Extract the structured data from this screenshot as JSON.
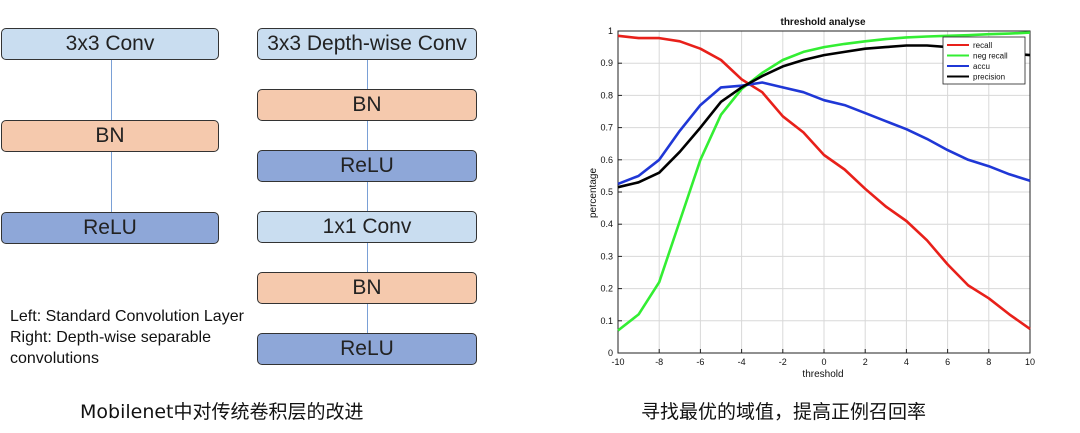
{
  "left_diagram": {
    "standard": {
      "blocks": [
        {
          "label": "3x3 Conv",
          "kind": "conv"
        },
        {
          "label": "BN",
          "kind": "bn"
        },
        {
          "label": "ReLU",
          "kind": "relu"
        }
      ]
    },
    "depthwise": {
      "blocks": [
        {
          "label": "3x3 Depth-wise Conv",
          "kind": "conv"
        },
        {
          "label": "BN",
          "kind": "bn"
        },
        {
          "label": "ReLU",
          "kind": "relu"
        },
        {
          "label": "1x1 Conv",
          "kind": "conv"
        },
        {
          "label": "BN",
          "kind": "bn"
        },
        {
          "label": "ReLU",
          "kind": "relu"
        }
      ]
    },
    "note_lines": [
      "Left: Standard Convolution Layer",
      "Right: Depth-wise separable",
      "convolutions"
    ],
    "caption": "Mobilenet中对传统卷积层的改进"
  },
  "right_caption": "寻找最优的域值，提高正例召回率",
  "colors": {
    "conv": "#c9ddf0",
    "bn": "#f5c9ad",
    "relu": "#8ea7d8",
    "recall": "#e8201a",
    "neg_recall": "#33ee33",
    "accu": "#1f37d6",
    "precision": "#000000"
  },
  "chart_data": {
    "type": "line",
    "title": "threshold analyse",
    "xlabel": "threshold",
    "ylabel": "percentage",
    "xlim": [
      -10,
      10
    ],
    "ylim": [
      0,
      1
    ],
    "xticks": [
      "-10",
      "-8",
      "-6",
      "-4",
      "-2",
      "0",
      "2",
      "4",
      "6",
      "8",
      "10"
    ],
    "yticks": [
      "0",
      "0.1",
      "0.2",
      "0.3",
      "0.4",
      "0.5",
      "0.6",
      "0.7",
      "0.8",
      "0.9",
      "1"
    ],
    "grid": true,
    "legend_position": "top-right",
    "x": [
      -10,
      -9,
      -8,
      -7,
      -6,
      -5,
      -4,
      -3,
      -2,
      -1,
      0,
      1,
      2,
      3,
      4,
      5,
      6,
      7,
      8,
      9,
      10
    ],
    "series": [
      {
        "name": "recall",
        "color": "#e8201a",
        "values": [
          0.985,
          0.978,
          0.978,
          0.968,
          0.945,
          0.91,
          0.85,
          0.81,
          0.735,
          0.685,
          0.615,
          0.57,
          0.51,
          0.455,
          0.41,
          0.35,
          0.275,
          0.21,
          0.17,
          0.12,
          0.075
        ]
      },
      {
        "name": "neg recall",
        "color": "#33ee33",
        "values": [
          0.07,
          0.12,
          0.22,
          0.41,
          0.6,
          0.74,
          0.82,
          0.87,
          0.91,
          0.935,
          0.95,
          0.96,
          0.968,
          0.975,
          0.98,
          0.983,
          0.985,
          0.987,
          0.99,
          0.992,
          0.995
        ]
      },
      {
        "name": "accu",
        "color": "#1f37d6",
        "values": [
          0.525,
          0.55,
          0.6,
          0.69,
          0.77,
          0.825,
          0.83,
          0.84,
          0.825,
          0.81,
          0.785,
          0.77,
          0.745,
          0.72,
          0.695,
          0.665,
          0.63,
          0.6,
          0.58,
          0.555,
          0.535
        ]
      },
      {
        "name": "precision",
        "color": "#000000",
        "values": [
          0.515,
          0.53,
          0.56,
          0.625,
          0.7,
          0.78,
          0.825,
          0.86,
          0.89,
          0.91,
          0.925,
          0.935,
          0.945,
          0.95,
          0.955,
          0.955,
          0.95,
          0.945,
          0.935,
          0.93,
          0.925
        ]
      }
    ]
  }
}
